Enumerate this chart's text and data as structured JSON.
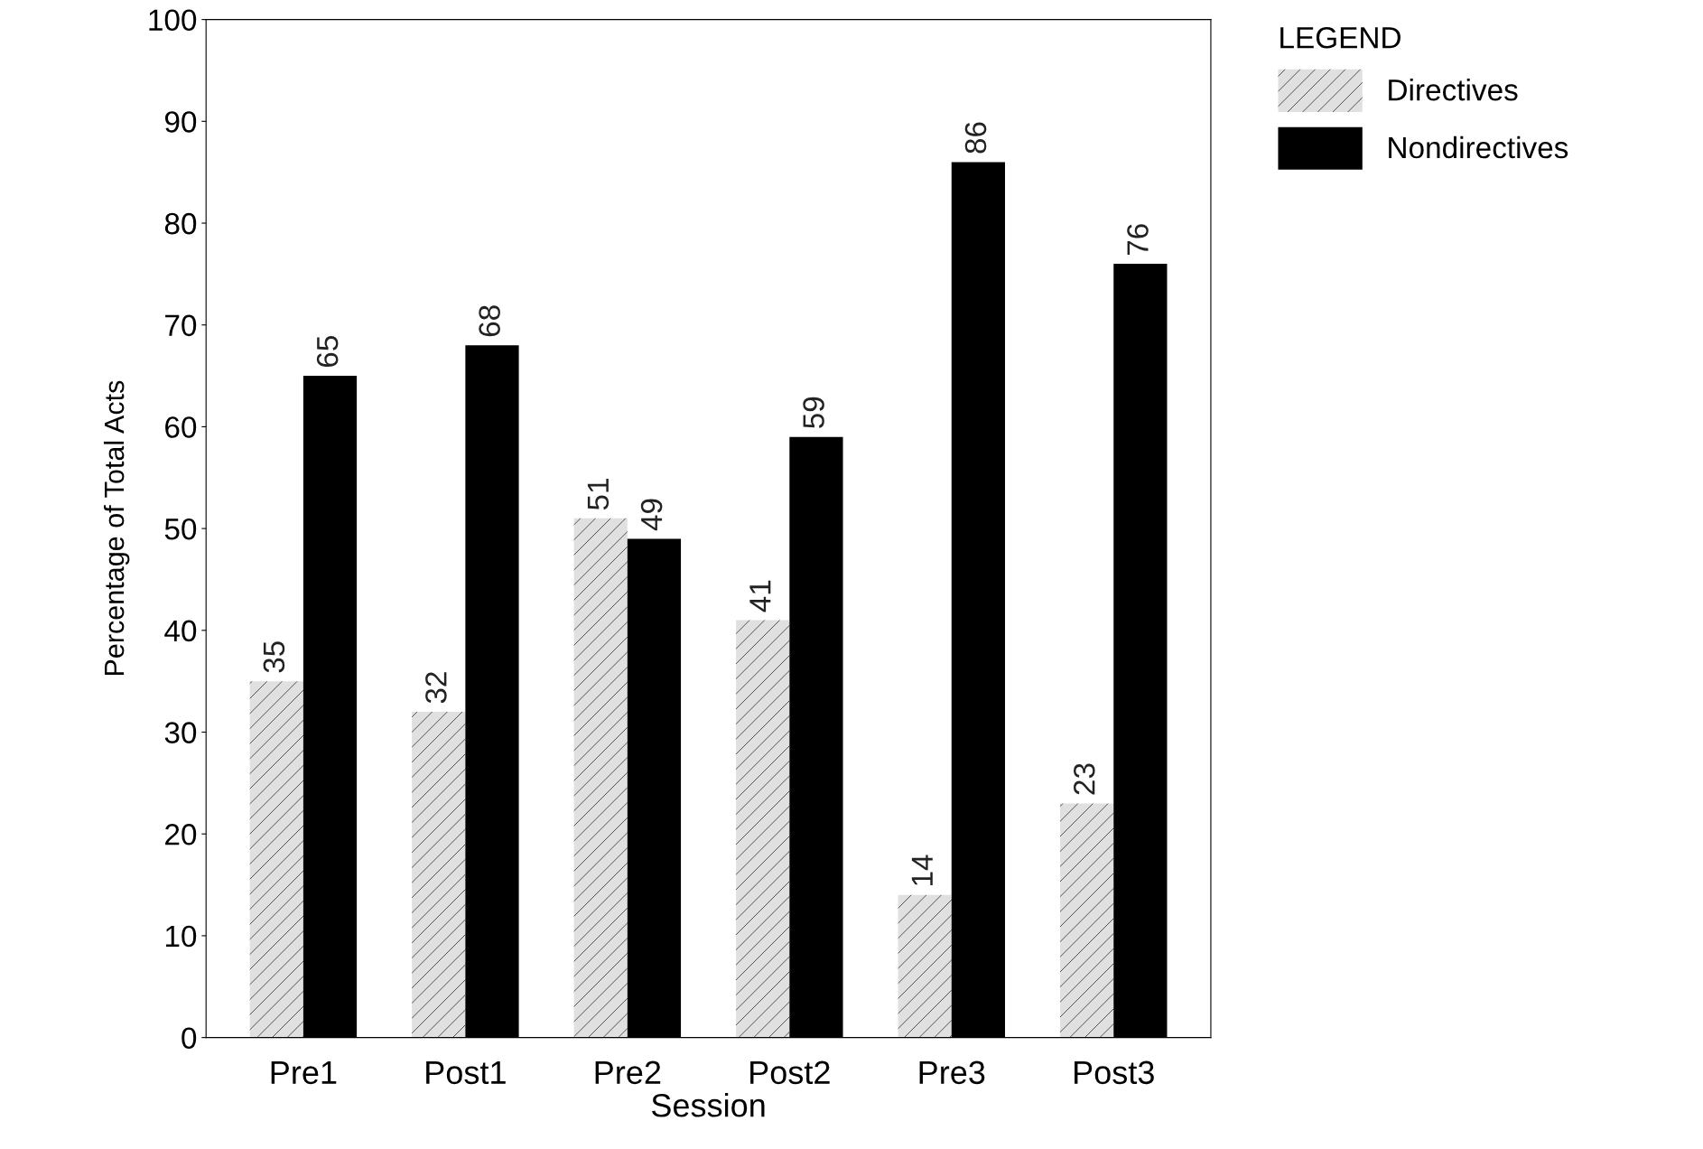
{
  "chart_data": {
    "type": "bar",
    "xlabel": "Session",
    "ylabel": "Percentage of Total Acts",
    "legend_title": "LEGEND",
    "categories": [
      "Pre1",
      "Post1",
      "Pre2",
      "Post2",
      "Pre3",
      "Post3"
    ],
    "series": [
      {
        "name": "Directives",
        "color": "#e0e0e0",
        "values": [
          35,
          32,
          51,
          41,
          14,
          23
        ]
      },
      {
        "name": "Nondirectives",
        "color": "#000000",
        "values": [
          65,
          68,
          49,
          59,
          86,
          76
        ]
      }
    ],
    "ylim": [
      0,
      100
    ],
    "yticks": [
      0,
      10,
      20,
      30,
      40,
      50,
      60,
      70,
      80,
      90,
      100
    ],
    "data_labels": true,
    "grid": false,
    "legend": "top right"
  }
}
